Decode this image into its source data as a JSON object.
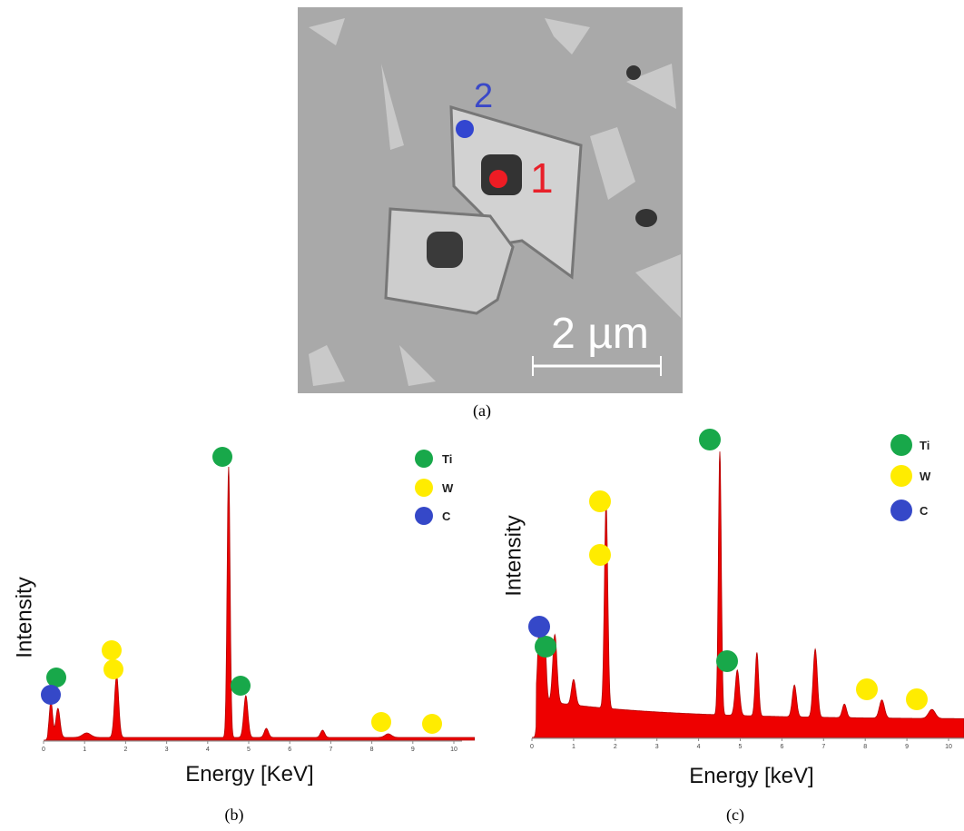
{
  "figure": {
    "a": {
      "point_labels": [
        "1",
        "2"
      ],
      "scale_bar": "2 µm",
      "caption": "(a)"
    },
    "b": {
      "y_label": "Intensity",
      "x_label": "Energy [KeV]",
      "xlim": [
        0,
        10.2
      ],
      "xticks": [
        0,
        1,
        2,
        3,
        4,
        5,
        6,
        7,
        8,
        9,
        10
      ],
      "legend": [
        {
          "name": "Ti",
          "color": "#18a84a"
        },
        {
          "name": "W",
          "color": "#ffec00"
        },
        {
          "name": "C",
          "color": "#3548c8"
        }
      ],
      "caption": "(b)"
    },
    "c": {
      "y_label": "Intensity",
      "x_label": "Energy [keV]",
      "xlim": [
        0,
        10.4
      ],
      "xticks": [
        0,
        1,
        2,
        3,
        4,
        5,
        6,
        7,
        8,
        9,
        10
      ],
      "legend": [
        {
          "name": "Ti",
          "color": "#18a84a"
        },
        {
          "name": "W",
          "color": "#ffec00"
        },
        {
          "name": "C",
          "color": "#3548c8"
        }
      ],
      "caption": "(c)"
    }
  }
}
